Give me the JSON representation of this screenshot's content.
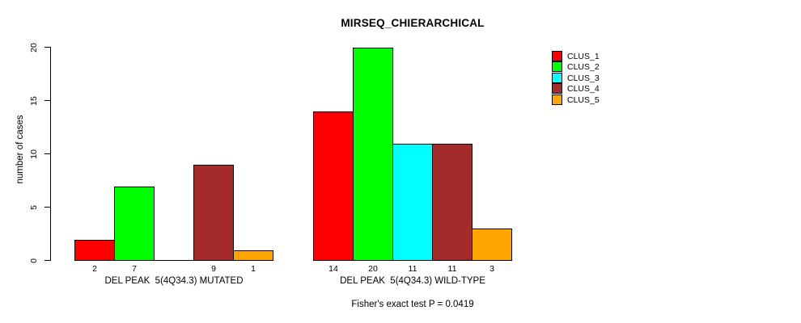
{
  "chart_data": {
    "type": "bar",
    "title": "MIRSEQ_CHIERARCHICAL",
    "ylabel": "number of cases",
    "subtitle": "Fisher's exact test P = 0.0419",
    "ylim": [
      0,
      20
    ],
    "yticks": [
      0,
      5,
      10,
      15,
      20
    ],
    "grid": false,
    "legend_position": "right",
    "series": [
      "CLUS_1",
      "CLUS_2",
      "CLUS_3",
      "CLUS_4",
      "CLUS_5"
    ],
    "colors": [
      "#FF0000",
      "#00FF00",
      "#00FFFF",
      "#A52A2A",
      "#FFA500"
    ],
    "groups": [
      {
        "label": "DEL PEAK  5(4Q34.3) MUTATED",
        "values": [
          2,
          7,
          0,
          9,
          1
        ]
      },
      {
        "label": "DEL PEAK  5(4Q34.3) WILD-TYPE",
        "values": [
          14,
          20,
          11,
          11,
          3
        ]
      }
    ]
  }
}
